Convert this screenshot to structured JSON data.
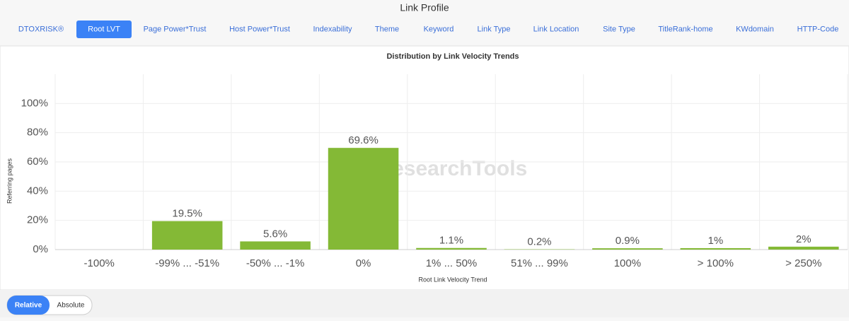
{
  "header": {
    "title": "Link Profile"
  },
  "tabs": {
    "items": [
      "DTOXRISK®",
      "Root LVT",
      "Page Power*Trust",
      "Host Power*Trust",
      "Indexability",
      "Theme",
      "Keyword",
      "Link Type",
      "Link Location",
      "Site Type",
      "TitleRank-home",
      "KWdomain",
      "HTTP-Code"
    ],
    "active": 1
  },
  "chart_data": {
    "type": "bar",
    "title": "Distribution by Link Velocity Trends",
    "watermark": "LinkResearchTools",
    "x_label": "Root Link Velocity Trend",
    "y_label": "Referring pages",
    "categories": [
      "-100%",
      "-99% ... -51%",
      "-50% ... -1%",
      "0%",
      "1% ... 50%",
      "51% ... 99%",
      "100%",
      "> 100%",
      "> 250%"
    ],
    "values": [
      0,
      19.5,
      5.6,
      69.6,
      1.1,
      0.2,
      0.9,
      1,
      2
    ],
    "value_labels": [
      null,
      "19.5%",
      "5.6%",
      "69.6%",
      "1.1%",
      "0.2%",
      "0.9%",
      "1%",
      "2%"
    ],
    "color": "#84b936",
    "ylim": [
      0,
      120
    ],
    "yticks": [
      {
        "value": 0,
        "label": "0%"
      },
      {
        "value": 20,
        "label": "20%"
      },
      {
        "value": 40,
        "label": "40%"
      },
      {
        "value": 60,
        "label": "60%"
      },
      {
        "value": 80,
        "label": "80%"
      },
      {
        "value": 100,
        "label": "100%"
      }
    ],
    "grid": true
  },
  "toggle": {
    "items": [
      "Relative",
      "Absolute"
    ],
    "active": 0
  }
}
